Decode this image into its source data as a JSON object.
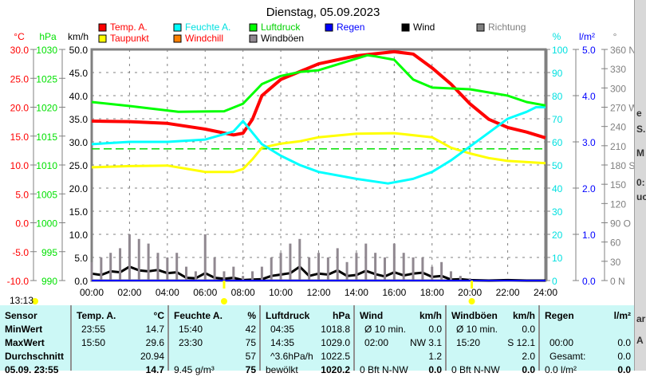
{
  "title": "Dienstag, 05.09.2023",
  "daylength": "13:13",
  "legend": [
    {
      "label": "Temp. A.",
      "color": "#ff0000",
      "text": "#ff0000"
    },
    {
      "label": "Feuchte A.",
      "color": "#00ffff",
      "text": "#00e0e0"
    },
    {
      "label": "Luftdruck",
      "color": "#00ff00",
      "text": "#00d000"
    },
    {
      "label": "Regen",
      "color": "#0000ff",
      "text": "#0000ff"
    },
    {
      "label": "Wind",
      "color": "#000000",
      "text": "#000000"
    },
    {
      "label": "Richtung",
      "color": "#808080",
      "text": "#808080"
    },
    {
      "label": "Taupunkt",
      "color": "#ffff00",
      "text": "#ff0000"
    },
    {
      "label": "Windchill",
      "color": "#ff8000",
      "text": "#ff0000"
    },
    {
      "label": "Windböen",
      "color": "#908890",
      "text": "#000000"
    }
  ],
  "chart_data": {
    "type": "line",
    "title": "Dienstag, 05.09.2023",
    "x_range": [
      0,
      24
    ],
    "x_ticks": [
      "00:00",
      "02:00",
      "04:00",
      "06:00",
      "08:00",
      "10:00",
      "12:00",
      "14:00",
      "16:00",
      "18:00",
      "20:00",
      "22:00",
      "24:00"
    ],
    "axes": {
      "temp": {
        "unit": "°C",
        "range": [
          -10,
          30
        ],
        "ticks": [
          "30.0",
          "25.0",
          "20.0",
          "15.0",
          "10.0",
          "5.0",
          "0.0",
          "-5.0",
          "-10.0"
        ]
      },
      "pressure": {
        "unit": "hPa",
        "range": [
          990,
          1030
        ],
        "ticks": [
          "1030",
          "1025",
          "1020",
          "1015",
          "1010",
          "1005",
          "1000",
          "995",
          "990"
        ]
      },
      "wind": {
        "unit": "km/h",
        "range": [
          0,
          50
        ],
        "ticks": [
          "50.0",
          "45.0",
          "40.0",
          "35.0",
          "30.0",
          "25.0",
          "20.0",
          "15.0",
          "10.0",
          "5.0",
          "0.0"
        ]
      },
      "humidity": {
        "unit": "%",
        "range": [
          0,
          100
        ],
        "ticks": [
          "100",
          "90",
          "80",
          "70",
          "60",
          "50",
          "40",
          "30",
          "20",
          "10",
          "0"
        ]
      },
      "rain": {
        "unit": "l/m²",
        "range": [
          0,
          5
        ],
        "ticks": [
          "5.0",
          "4.0",
          "3.0",
          "2.0",
          "1.0",
          "0.0"
        ]
      },
      "direction": {
        "unit": "°",
        "range": [
          0,
          360
        ],
        "ticks": [
          "360 N",
          "330",
          "300",
          "270 W",
          "240",
          "210",
          "180 S",
          "150",
          "120",
          "90  O",
          "60",
          "30",
          "0   N"
        ]
      }
    },
    "series": [
      {
        "name": "Temp. A.",
        "axis": "temp",
        "color": "#ff0000",
        "x": [
          0,
          2,
          4,
          6,
          7.5,
          8,
          8.5,
          9,
          10,
          12,
          14,
          16,
          17,
          18,
          19,
          20,
          21,
          22,
          23,
          24
        ],
        "y": [
          17.6,
          17.5,
          17.2,
          16.2,
          15.2,
          15.5,
          17.9,
          22,
          24.8,
          27.5,
          28.9,
          29.6,
          29.2,
          26.8,
          24,
          20.6,
          17.9,
          16.5,
          15.7,
          14.7
        ]
      },
      {
        "name": "Taupunkt",
        "axis": "temp",
        "color": "#ffff00",
        "x": [
          0,
          2,
          4,
          6,
          7.5,
          8,
          8.5,
          9,
          10,
          11,
          12,
          14,
          16,
          18,
          19,
          20,
          21,
          22,
          24
        ],
        "y": [
          9.6,
          9.8,
          9.9,
          8.8,
          8.8,
          9.3,
          11,
          13,
          13.7,
          14.1,
          14.8,
          15.4,
          15.5,
          14.8,
          13,
          12,
          11.2,
          10.7,
          10.3
        ]
      },
      {
        "name": "Feuchte A.",
        "axis": "humidity",
        "color": "#00ffff",
        "x": [
          0,
          2,
          4,
          6,
          7.5,
          8,
          8.5,
          9,
          10,
          11,
          12,
          14,
          15.67,
          17,
          18,
          19,
          20,
          21,
          22,
          23,
          23.5,
          24
        ],
        "y": [
          59,
          60,
          60,
          61,
          64.5,
          69,
          64,
          59,
          54,
          50,
          47,
          44,
          42,
          44,
          47,
          52,
          58,
          64,
          70,
          73,
          75,
          75
        ]
      },
      {
        "name": "Luftdruck",
        "axis": "pressure",
        "color": "#00ff00",
        "x": [
          0,
          2,
          4.58,
          7,
          8,
          9,
          10,
          11,
          12,
          14.58,
          15,
          16,
          17,
          18,
          20,
          22,
          23,
          24
        ],
        "y": [
          1020.9,
          1020.2,
          1019.2,
          1019.3,
          1020.6,
          1024,
          1025.4,
          1026.1,
          1026.4,
          1029,
          1028.8,
          1028.2,
          1024.8,
          1023.4,
          1023.1,
          1022,
          1020.9,
          1020.3
        ]
      },
      {
        "name": "Wind",
        "axis": "wind",
        "color": "#000000",
        "x": [
          0,
          0.5,
          1,
          1.5,
          2,
          2.5,
          3,
          3.5,
          4,
          4.5,
          5,
          5.5,
          6,
          6.5,
          7,
          7.5,
          8,
          8.5,
          9,
          9.5,
          10,
          10.5,
          11,
          11.5,
          12,
          12.5,
          13,
          13.5,
          14,
          14.5,
          15,
          15.5,
          16,
          16.5,
          17,
          17.5,
          18,
          18.5,
          19,
          19.5,
          20,
          21,
          22,
          23,
          24
        ],
        "y": [
          1.5,
          1.2,
          2,
          1.8,
          3,
          2.2,
          2,
          2.3,
          1.6,
          1.8,
          0.6,
          0.5,
          1.6,
          0.6,
          0.4,
          0.6,
          0.1,
          0.2,
          0.3,
          1,
          1.3,
          1.6,
          3,
          1,
          1.5,
          1.3,
          2.2,
          1,
          1.2,
          2.1,
          1.4,
          0.9,
          1.8,
          1.1,
          1.5,
          1.7,
          0.8,
          1,
          0.2,
          0.3,
          0.1,
          0,
          0.1,
          0,
          0
        ]
      },
      {
        "name": "Windböen",
        "axis": "wind",
        "color": "#908890",
        "x": [
          0,
          0.5,
          1,
          1.5,
          2,
          2.5,
          3,
          3.5,
          4,
          4.5,
          5,
          5.5,
          6,
          6.5,
          7,
          7.5,
          8,
          8.5,
          9,
          9.5,
          10,
          10.5,
          11,
          11.5,
          12,
          12.5,
          13,
          13.5,
          14,
          14.5,
          15,
          15.5,
          16,
          16.5,
          17,
          17.5,
          18,
          18.5,
          19,
          19.5,
          20,
          21,
          22,
          23,
          24
        ],
        "y": [
          4,
          5,
          6,
          7,
          10,
          9,
          8,
          6,
          5,
          6,
          3,
          2,
          10,
          5,
          2,
          3,
          1,
          2,
          3,
          5,
          6,
          8,
          9,
          5,
          6,
          5,
          7,
          4,
          6,
          8,
          6,
          5,
          8,
          6,
          5,
          5,
          3,
          4,
          2,
          1,
          0.5,
          0,
          0,
          0,
          0
        ]
      },
      {
        "name": "Regen",
        "axis": "rain",
        "color": "#0000ff",
        "x": [
          0,
          24
        ],
        "y": [
          0,
          0
        ]
      }
    ],
    "reference_line": {
      "axis": "humidity",
      "value": 57,
      "color": "#00e000"
    },
    "sunrise": 7.0,
    "sunset": 20.1
  },
  "table": {
    "headers": [
      "Sensor",
      "Temp. A.",
      "°C",
      "Feuchte A.",
      "%",
      "Luftdruck",
      "hPa",
      "Wind",
      "km/h",
      "Windböen",
      "km/h",
      "Regen",
      "l/m²"
    ],
    "rows": [
      [
        "MinWert",
        "23:55",
        "14.7",
        "15:40",
        "42",
        "04:35",
        "1018.8",
        "Ø 10 min.",
        "0.0",
        "Ø 10 min.",
        "0.0",
        "",
        ""
      ],
      [
        "MaxWert",
        "15:50",
        "29.6",
        "23:30",
        "75",
        "14:35",
        "1029.0",
        "02:00",
        "NW 3.1",
        "15:20",
        "S 12.1",
        "00:00",
        "0.0"
      ],
      [
        "Durchschnitt",
        "",
        "20.94",
        "",
        "57",
        "^3.6hPa/h",
        "1022.5",
        "",
        "1.2",
        "",
        "2.0",
        "Gesamt:",
        "0.0"
      ],
      [
        "05.09. 23:55",
        "",
        "14.7",
        "9.45 g/m³",
        "75",
        "bewölkt",
        "1020.2",
        "0 Bft N-NW",
        "0.0",
        "0 Bft N-NW",
        "0.0",
        "0.0 l/m²",
        "0.0"
      ]
    ]
  },
  "side": [
    "e",
    "S.",
    "M",
    "0:",
    "uc",
    "ar",
    "A"
  ]
}
